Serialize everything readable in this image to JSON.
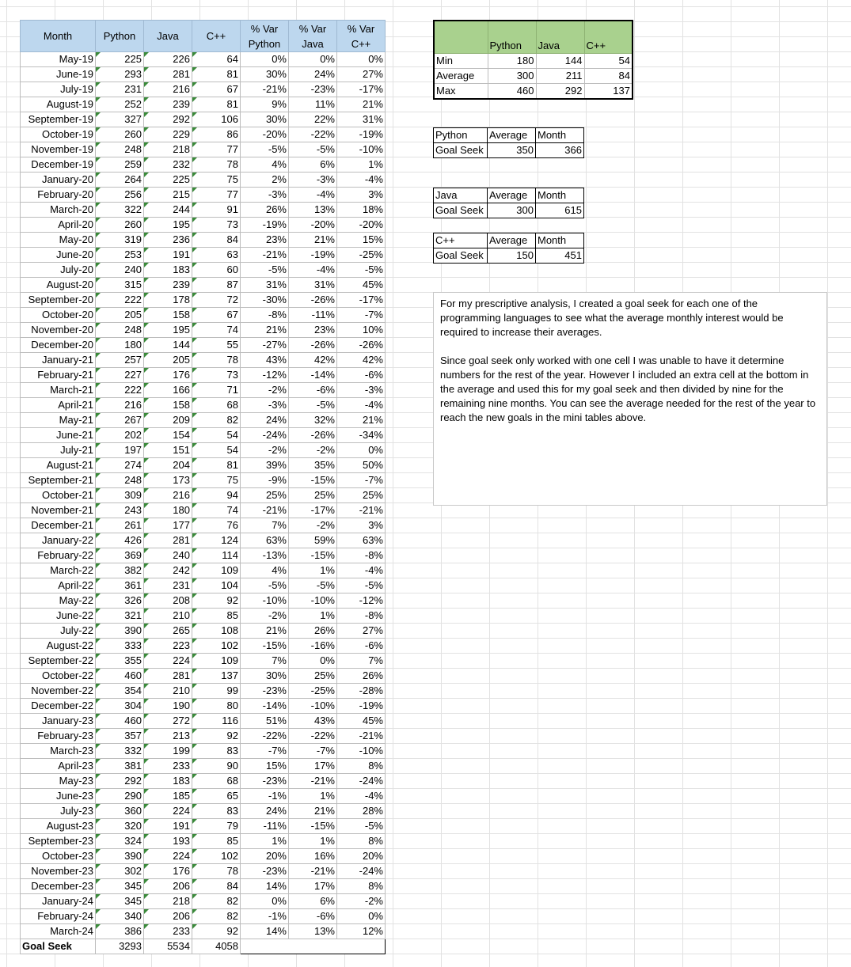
{
  "main_table": {
    "headers": [
      "Month",
      "Python",
      "Java",
      "C++",
      "% Var\nPython",
      "% Var\nJava",
      "% Var\nC++"
    ],
    "rows": [
      [
        "May-19",
        "225",
        "226",
        "64",
        "0%",
        "0%",
        "0%"
      ],
      [
        "June-19",
        "293",
        "281",
        "81",
        "30%",
        "24%",
        "27%"
      ],
      [
        "July-19",
        "231",
        "216",
        "67",
        "-21%",
        "-23%",
        "-17%"
      ],
      [
        "August-19",
        "252",
        "239",
        "81",
        "9%",
        "11%",
        "21%"
      ],
      [
        "September-19",
        "327",
        "292",
        "106",
        "30%",
        "22%",
        "31%"
      ],
      [
        "October-19",
        "260",
        "229",
        "86",
        "-20%",
        "-22%",
        "-19%"
      ],
      [
        "November-19",
        "248",
        "218",
        "77",
        "-5%",
        "-5%",
        "-10%"
      ],
      [
        "December-19",
        "259",
        "232",
        "78",
        "4%",
        "6%",
        "1%"
      ],
      [
        "January-20",
        "264",
        "225",
        "75",
        "2%",
        "-3%",
        "-4%"
      ],
      [
        "February-20",
        "256",
        "215",
        "77",
        "-3%",
        "-4%",
        "3%"
      ],
      [
        "March-20",
        "322",
        "244",
        "91",
        "26%",
        "13%",
        "18%"
      ],
      [
        "April-20",
        "260",
        "195",
        "73",
        "-19%",
        "-20%",
        "-20%"
      ],
      [
        "May-20",
        "319",
        "236",
        "84",
        "23%",
        "21%",
        "15%"
      ],
      [
        "June-20",
        "253",
        "191",
        "63",
        "-21%",
        "-19%",
        "-25%"
      ],
      [
        "July-20",
        "240",
        "183",
        "60",
        "-5%",
        "-4%",
        "-5%"
      ],
      [
        "August-20",
        "315",
        "239",
        "87",
        "31%",
        "31%",
        "45%"
      ],
      [
        "September-20",
        "222",
        "178",
        "72",
        "-30%",
        "-26%",
        "-17%"
      ],
      [
        "October-20",
        "205",
        "158",
        "67",
        "-8%",
        "-11%",
        "-7%"
      ],
      [
        "November-20",
        "248",
        "195",
        "74",
        "21%",
        "23%",
        "10%"
      ],
      [
        "December-20",
        "180",
        "144",
        "55",
        "-27%",
        "-26%",
        "-26%"
      ],
      [
        "January-21",
        "257",
        "205",
        "78",
        "43%",
        "42%",
        "42%"
      ],
      [
        "February-21",
        "227",
        "176",
        "73",
        "-12%",
        "-14%",
        "-6%"
      ],
      [
        "March-21",
        "222",
        "166",
        "71",
        "-2%",
        "-6%",
        "-3%"
      ],
      [
        "April-21",
        "216",
        "158",
        "68",
        "-3%",
        "-5%",
        "-4%"
      ],
      [
        "May-21",
        "267",
        "209",
        "82",
        "24%",
        "32%",
        "21%"
      ],
      [
        "June-21",
        "202",
        "154",
        "54",
        "-24%",
        "-26%",
        "-34%"
      ],
      [
        "July-21",
        "197",
        "151",
        "54",
        "-2%",
        "-2%",
        "0%"
      ],
      [
        "August-21",
        "274",
        "204",
        "81",
        "39%",
        "35%",
        "50%"
      ],
      [
        "September-21",
        "248",
        "173",
        "75",
        "-9%",
        "-15%",
        "-7%"
      ],
      [
        "October-21",
        "309",
        "216",
        "94",
        "25%",
        "25%",
        "25%"
      ],
      [
        "November-21",
        "243",
        "180",
        "74",
        "-21%",
        "-17%",
        "-21%"
      ],
      [
        "December-21",
        "261",
        "177",
        "76",
        "7%",
        "-2%",
        "3%"
      ],
      [
        "January-22",
        "426",
        "281",
        "124",
        "63%",
        "59%",
        "63%"
      ],
      [
        "February-22",
        "369",
        "240",
        "114",
        "-13%",
        "-15%",
        "-8%"
      ],
      [
        "March-22",
        "382",
        "242",
        "109",
        "4%",
        "1%",
        "-4%"
      ],
      [
        "April-22",
        "361",
        "231",
        "104",
        "-5%",
        "-5%",
        "-5%"
      ],
      [
        "May-22",
        "326",
        "208",
        "92",
        "-10%",
        "-10%",
        "-12%"
      ],
      [
        "June-22",
        "321",
        "210",
        "85",
        "-2%",
        "1%",
        "-8%"
      ],
      [
        "July-22",
        "390",
        "265",
        "108",
        "21%",
        "26%",
        "27%"
      ],
      [
        "August-22",
        "333",
        "223",
        "102",
        "-15%",
        "-16%",
        "-6%"
      ],
      [
        "September-22",
        "355",
        "224",
        "109",
        "7%",
        "0%",
        "7%"
      ],
      [
        "October-22",
        "460",
        "281",
        "137",
        "30%",
        "25%",
        "26%"
      ],
      [
        "November-22",
        "354",
        "210",
        "99",
        "-23%",
        "-25%",
        "-28%"
      ],
      [
        "December-22",
        "304",
        "190",
        "80",
        "-14%",
        "-10%",
        "-19%"
      ],
      [
        "January-23",
        "460",
        "272",
        "116",
        "51%",
        "43%",
        "45%"
      ],
      [
        "February-23",
        "357",
        "213",
        "92",
        "-22%",
        "-22%",
        "-21%"
      ],
      [
        "March-23",
        "332",
        "199",
        "83",
        "-7%",
        "-7%",
        "-10%"
      ],
      [
        "April-23",
        "381",
        "233",
        "90",
        "15%",
        "17%",
        "8%"
      ],
      [
        "May-23",
        "292",
        "183",
        "68",
        "-23%",
        "-21%",
        "-24%"
      ],
      [
        "June-23",
        "290",
        "185",
        "65",
        "-1%",
        "1%",
        "-4%"
      ],
      [
        "July-23",
        "360",
        "224",
        "83",
        "24%",
        "21%",
        "28%"
      ],
      [
        "August-23",
        "320",
        "191",
        "79",
        "-11%",
        "-15%",
        "-5%"
      ],
      [
        "September-23",
        "324",
        "193",
        "85",
        "1%",
        "1%",
        "8%"
      ],
      [
        "October-23",
        "390",
        "224",
        "102",
        "20%",
        "16%",
        "20%"
      ],
      [
        "November-23",
        "302",
        "176",
        "78",
        "-23%",
        "-21%",
        "-24%"
      ],
      [
        "December-23",
        "345",
        "206",
        "84",
        "14%",
        "17%",
        "8%"
      ],
      [
        "January-24",
        "345",
        "218",
        "82",
        "0%",
        "6%",
        "-2%"
      ],
      [
        "February-24",
        "340",
        "206",
        "82",
        "-1%",
        "-6%",
        "0%"
      ],
      [
        "March-24",
        "386",
        "233",
        "92",
        "14%",
        "13%",
        "12%"
      ]
    ],
    "footer": {
      "label": "Goal Seek",
      "python": "3293",
      "java": "5534",
      "cpp": "4058"
    }
  },
  "stats_table": {
    "headers": [
      "",
      "Python",
      "Java",
      "C++"
    ],
    "rows": [
      [
        "Min",
        "180",
        "144",
        "54"
      ],
      [
        "Average",
        "300",
        "211",
        "84"
      ],
      [
        "Max",
        "460",
        "292",
        "137"
      ]
    ]
  },
  "goal_python": {
    "title": "Python",
    "col1": "Average",
    "col2": "Month",
    "label": "Goal Seek",
    "average": "350",
    "month": "366"
  },
  "goal_java": {
    "title": "Java",
    "col1": "Average",
    "col2": "Month",
    "label": "Goal Seek",
    "average": "300",
    "month": "615"
  },
  "goal_cpp": {
    "title": "C++",
    "col1": "Average",
    "col2": "Month",
    "label": "Goal Seek",
    "average": "150",
    "month": "451"
  },
  "note": {
    "paragraph1": "For my prescriptive analysis, I created a goal seek for each one of the programming languages to see what the average monthly interest would be required to increase their averages.",
    "paragraph2": "Since goal seek only worked with one cell I was unable to have it determine numbers for the rest of the year. However I included an extra cell at the bottom in the average and used this for my goal seek and then divided by nine for the remaining nine months. You can see the average needed for the rest of the year to reach the new goals in the mini tables above."
  }
}
